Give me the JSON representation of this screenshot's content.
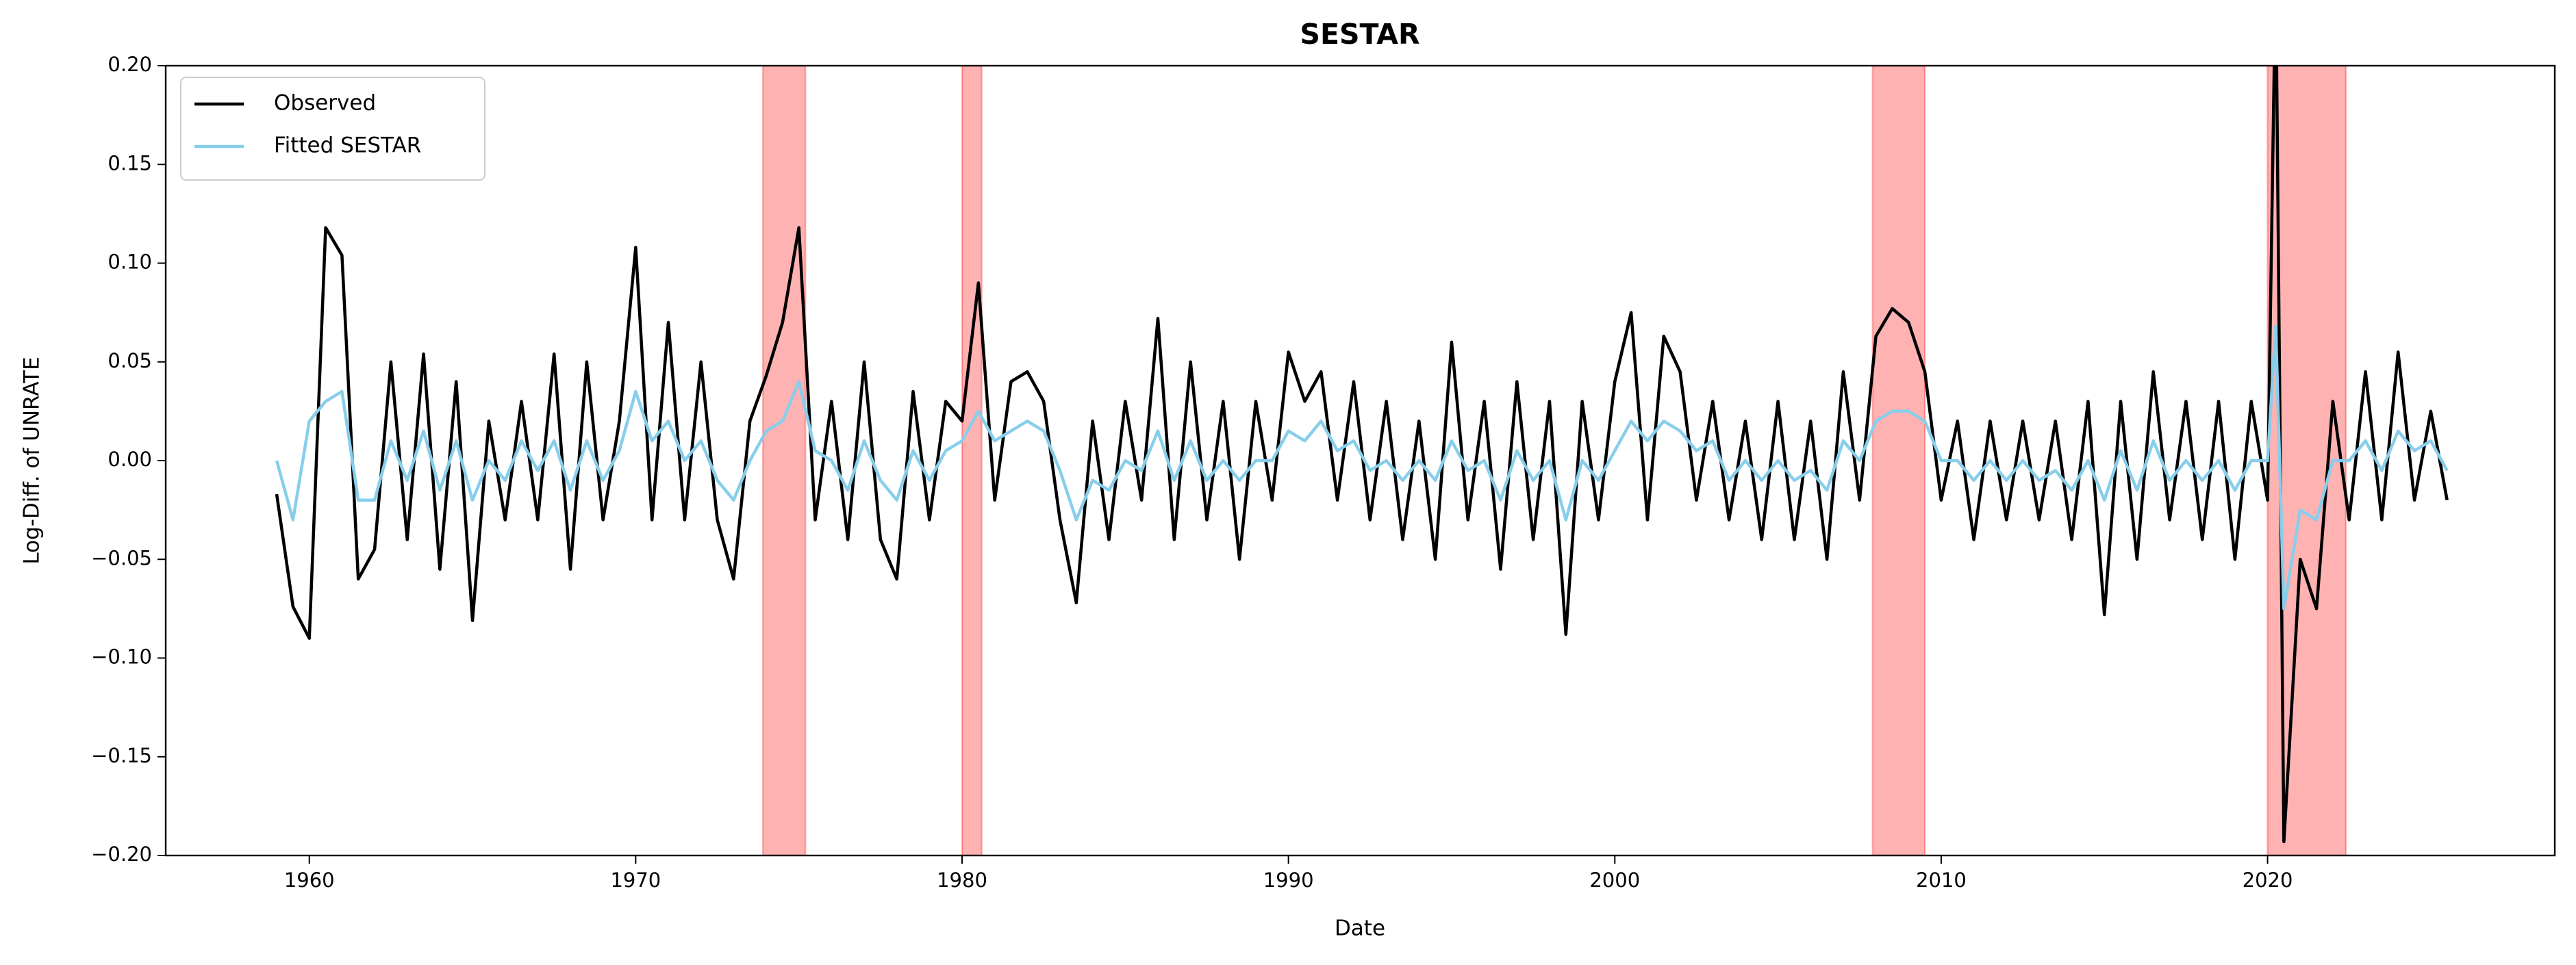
{
  "chart_data": {
    "type": "line",
    "title": "SESTAR",
    "x_label": "Date",
    "y_label": "Log-Diff. of UNRATE",
    "xlim": [
      1955.6,
      2028.8
    ],
    "xticks": [
      1960,
      1970,
      1980,
      1990,
      2000,
      2010,
      2020
    ],
    "ylim": [
      -0.2,
      0.2
    ],
    "yticks": [
      {
        "value": -0.2,
        "label": "−0.20"
      },
      {
        "value": -0.15,
        "label": "−0.15"
      },
      {
        "value": -0.1,
        "label": "−0.10"
      },
      {
        "value": -0.05,
        "label": "−0.05"
      },
      {
        "value": 0,
        "label": "0.00"
      },
      {
        "value": 0.05,
        "label": "0.05"
      },
      {
        "value": 0.1,
        "label": "0.10"
      },
      {
        "value": 0.15,
        "label": "0.15"
      },
      {
        "value": 0.2,
        "label": "0.20"
      }
    ],
    "grid": false,
    "legend_position": "upper left",
    "shaded_regions": [
      {
        "start": 1973.9,
        "end": 1975.2
      },
      {
        "start": 1980.0,
        "end": 1980.6
      },
      {
        "start": 2007.9,
        "end": 2009.5
      },
      {
        "start": 2020.0,
        "end": 2022.4
      }
    ],
    "shade_color": "#ff0000",
    "x": [
      1959.0,
      1959.5,
      1960.0,
      1960.5,
      1961.0,
      1961.5,
      1962.0,
      1962.5,
      1963.0,
      1963.5,
      1964.0,
      1964.5,
      1965.0,
      1965.5,
      1966.0,
      1966.5,
      1967.0,
      1967.5,
      1968.0,
      1968.5,
      1969.0,
      1969.5,
      1970.0,
      1970.5,
      1971.0,
      1971.5,
      1972.0,
      1972.5,
      1973.0,
      1973.5,
      1974.0,
      1974.5,
      1975.0,
      1975.5,
      1976.0,
      1976.5,
      1977.0,
      1977.5,
      1978.0,
      1978.5,
      1979.0,
      1979.5,
      1980.0,
      1980.5,
      1981.0,
      1981.5,
      1982.0,
      1982.5,
      1983.0,
      1983.5,
      1984.0,
      1984.5,
      1985.0,
      1985.5,
      1986.0,
      1986.5,
      1987.0,
      1987.5,
      1988.0,
      1988.5,
      1989.0,
      1989.5,
      1990.0,
      1990.5,
      1991.0,
      1991.5,
      1992.0,
      1992.5,
      1993.0,
      1993.5,
      1994.0,
      1994.5,
      1995.0,
      1995.5,
      1996.0,
      1996.5,
      1997.0,
      1997.5,
      1998.0,
      1998.5,
      1999.0,
      1999.5,
      2000.0,
      2000.5,
      2001.0,
      2001.5,
      2002.0,
      2002.5,
      2003.0,
      2003.5,
      2004.0,
      2004.5,
      2005.0,
      2005.5,
      2006.0,
      2006.5,
      2007.0,
      2007.5,
      2008.0,
      2008.5,
      2009.0,
      2009.5,
      2010.0,
      2010.5,
      2011.0,
      2011.5,
      2012.0,
      2012.5,
      2013.0,
      2013.5,
      2014.0,
      2014.5,
      2015.0,
      2015.5,
      2016.0,
      2016.5,
      2017.0,
      2017.5,
      2018.0,
      2018.5,
      2019.0,
      2019.5,
      2020.0,
      2020.25,
      2020.5,
      2021.0,
      2021.5,
      2022.0,
      2022.5,
      2023.0,
      2023.5,
      2024.0,
      2024.5,
      2025.0,
      2025.5
    ],
    "series": [
      {
        "name": "Observed",
        "color": "#000000",
        "values": [
          -0.017,
          -0.074,
          -0.09,
          0.118,
          0.104,
          -0.06,
          -0.045,
          0.05,
          -0.04,
          0.054,
          -0.055,
          0.04,
          -0.081,
          0.02,
          -0.03,
          0.03,
          -0.03,
          0.054,
          -0.055,
          0.05,
          -0.03,
          0.02,
          0.108,
          -0.03,
          0.07,
          -0.03,
          0.05,
          -0.03,
          -0.06,
          0.02,
          0.043,
          0.07,
          0.118,
          -0.03,
          0.03,
          -0.04,
          0.05,
          -0.04,
          -0.06,
          0.035,
          -0.03,
          0.03,
          0.02,
          0.09,
          -0.02,
          0.04,
          0.045,
          0.03,
          -0.03,
          -0.072,
          0.02,
          -0.04,
          0.03,
          -0.02,
          0.072,
          -0.04,
          0.05,
          -0.03,
          0.03,
          -0.05,
          0.03,
          -0.02,
          0.055,
          0.03,
          0.045,
          -0.02,
          0.04,
          -0.03,
          0.03,
          -0.04,
          0.02,
          -0.05,
          0.06,
          -0.03,
          0.03,
          -0.055,
          0.04,
          -0.04,
          0.03,
          -0.088,
          0.03,
          -0.03,
          0.04,
          0.075,
          -0.03,
          0.063,
          0.045,
          -0.02,
          0.03,
          -0.03,
          0.02,
          -0.04,
          0.03,
          -0.04,
          0.02,
          -0.05,
          0.045,
          -0.02,
          0.063,
          0.077,
          0.07,
          0.045,
          -0.02,
          0.02,
          -0.04,
          0.02,
          -0.03,
          0.02,
          -0.03,
          0.02,
          -0.04,
          0.03,
          -0.078,
          0.03,
          -0.05,
          0.045,
          -0.03,
          0.03,
          -0.04,
          0.03,
          -0.05,
          0.03,
          -0.02,
          0.25,
          -0.193,
          -0.05,
          -0.075,
          0.03,
          -0.03,
          0.045,
          -0.03,
          0.055,
          -0.02,
          0.025,
          -0.02
        ]
      },
      {
        "name": "Fitted SESTAR",
        "color": "#87ceeb",
        "values": [
          0.0,
          -0.03,
          0.02,
          0.03,
          0.035,
          -0.02,
          -0.02,
          0.01,
          -0.01,
          0.015,
          -0.015,
          0.01,
          -0.02,
          0.0,
          -0.01,
          0.01,
          -0.005,
          0.01,
          -0.015,
          0.01,
          -0.01,
          0.005,
          0.035,
          0.01,
          0.02,
          0.0,
          0.01,
          -0.01,
          -0.02,
          0.0,
          0.015,
          0.02,
          0.04,
          0.005,
          0.0,
          -0.015,
          0.01,
          -0.01,
          -0.02,
          0.005,
          -0.01,
          0.005,
          0.01,
          0.025,
          0.01,
          0.015,
          0.02,
          0.015,
          -0.005,
          -0.03,
          -0.01,
          -0.015,
          0.0,
          -0.005,
          0.015,
          -0.01,
          0.01,
          -0.01,
          0.0,
          -0.01,
          0.0,
          0.0,
          0.015,
          0.01,
          0.02,
          0.005,
          0.01,
          -0.005,
          0.0,
          -0.01,
          0.0,
          -0.01,
          0.01,
          -0.005,
          0.0,
          -0.02,
          0.005,
          -0.01,
          0.0,
          -0.03,
          0.0,
          -0.01,
          0.005,
          0.02,
          0.01,
          0.02,
          0.015,
          0.005,
          0.01,
          -0.01,
          0.0,
          -0.01,
          0.0,
          -0.01,
          -0.005,
          -0.015,
          0.01,
          0.0,
          0.02,
          0.025,
          0.025,
          0.02,
          0.0,
          0.0,
          -0.01,
          0.0,
          -0.01,
          0.0,
          -0.01,
          -0.005,
          -0.015,
          0.0,
          -0.02,
          0.005,
          -0.015,
          0.01,
          -0.01,
          0.0,
          -0.01,
          0.0,
          -0.015,
          0.0,
          0.0,
          0.068,
          -0.075,
          -0.025,
          -0.03,
          0.0,
          0.0,
          0.01,
          -0.005,
          0.015,
          0.005,
          0.01,
          -0.005
        ]
      }
    ]
  }
}
